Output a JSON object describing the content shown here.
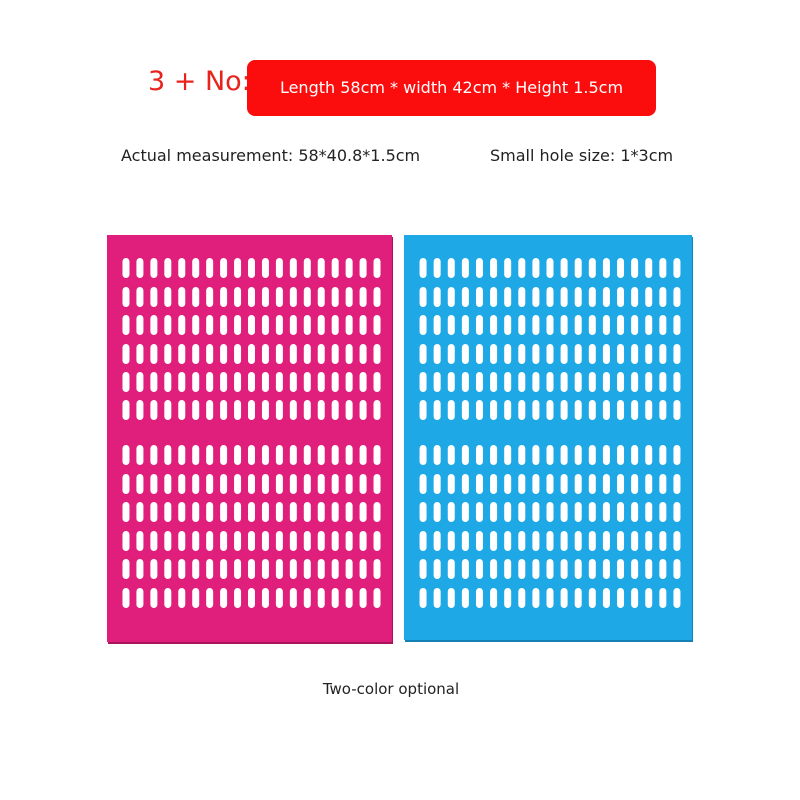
{
  "header": {
    "label": "3 + No:",
    "banner": "Length 58cm * width 42cm * Height 1.5cm"
  },
  "specs": {
    "measurement": "Actual measurement: 58*40.8*1.5cm",
    "hole_size": "Small hole size: 1*3cm"
  },
  "caption": "Two-color optional"
}
